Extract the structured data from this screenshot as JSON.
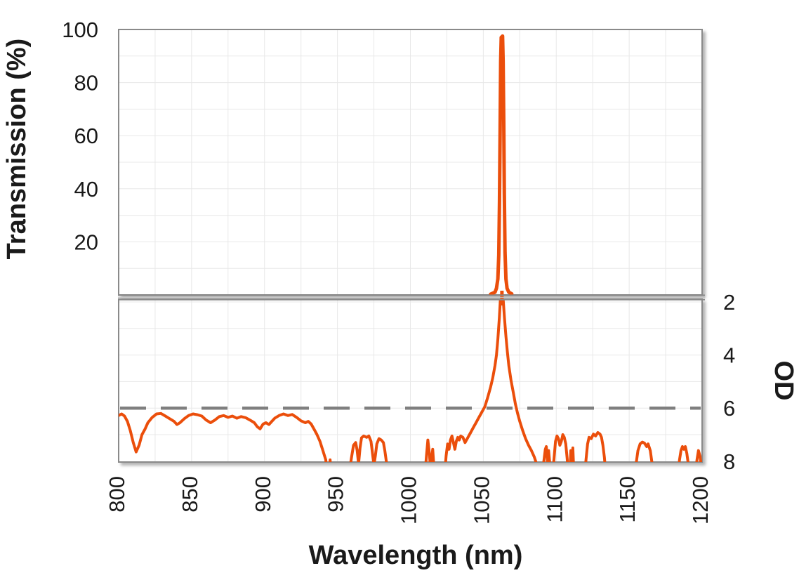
{
  "labels": {
    "xlabel": "Wavelength (nm)",
    "ylabel_left": "Transmission (%)",
    "ylabel_right": "OD"
  },
  "colors": {
    "curve_orange": "#EB4E0B",
    "grid": "#E8E8E8",
    "panel_border": "#8A8A8A",
    "divider_shadow": "#C4C4C4",
    "dashed_reference": "#7F7F7F",
    "text": "#1A1A1A",
    "background": "#FFFFFF"
  },
  "chart_data": {
    "type": "line",
    "title": "",
    "xlabel": "Wavelength (nm)",
    "ylabel_left": "Transmission (%)",
    "ylabel_right": "OD",
    "x_range_nm": [
      800,
      1200
    ],
    "x_ticks": [
      800,
      850,
      900,
      950,
      1000,
      1050,
      1100,
      1150,
      1200
    ],
    "x_minor_gridline_step_nm": 25,
    "x_tick_label_rotation_deg": -90,
    "grid": true,
    "legend": "none",
    "panels": {
      "top": {
        "axis_side": "left",
        "label": "Transmission (%)",
        "ylim": [
          0,
          100
        ],
        "yticks": [
          20,
          40,
          60,
          80,
          100
        ],
        "minor_gridline_step": 10
      },
      "bottom": {
        "axis_side": "right",
        "label": "OD",
        "ylim_top_to_bottom": [
          2,
          8
        ],
        "yticks": [
          2,
          4,
          6,
          8
        ],
        "minor_gridline_step": 1,
        "note": "inverted axis, OD 2 at top of panel, OD 8 at bottom edge"
      }
    },
    "reference_line": {
      "panel": "bottom",
      "od_value": 6,
      "style": "dashed",
      "color": "#7F7F7F"
    },
    "peak": {
      "center_nm": 1063,
      "peak_transmission_pct": 98
    },
    "series": [
      {
        "name": "transmission",
        "panel": "top",
        "color": "#EB4E0B",
        "points": [
          [
            1055,
            0.3
          ],
          [
            1058,
            1
          ],
          [
            1059,
            2.5
          ],
          [
            1060,
            6
          ],
          [
            1060.6,
            15
          ],
          [
            1061.1,
            35
          ],
          [
            1061.5,
            62
          ],
          [
            1061.9,
            88
          ],
          [
            1062.3,
            97
          ],
          [
            1063.2,
            97.5
          ],
          [
            1063.6,
            88
          ],
          [
            1064,
            65
          ],
          [
            1064.4,
            38
          ],
          [
            1064.9,
            16
          ],
          [
            1065.5,
            6
          ],
          [
            1066.3,
            2.5
          ],
          [
            1067.5,
            1
          ],
          [
            1069.5,
            0.4
          ]
        ]
      },
      {
        "name": "optical-density",
        "panel": "bottom",
        "color": "#EB4E0B",
        "points": [
          [
            800,
            6.28
          ],
          [
            802,
            6.22
          ],
          [
            804,
            6.3
          ],
          [
            806,
            6.5
          ],
          [
            808,
            6.85
          ],
          [
            810,
            7.3
          ],
          [
            812,
            7.65
          ],
          [
            814,
            7.4
          ],
          [
            816,
            7.0
          ],
          [
            818,
            6.8
          ],
          [
            820,
            6.55
          ],
          [
            823,
            6.35
          ],
          [
            826,
            6.22
          ],
          [
            829,
            6.2
          ],
          [
            832,
            6.3
          ],
          [
            835,
            6.4
          ],
          [
            838,
            6.5
          ],
          [
            840,
            6.62
          ],
          [
            842,
            6.55
          ],
          [
            845,
            6.4
          ],
          [
            848,
            6.28
          ],
          [
            851,
            6.22
          ],
          [
            854,
            6.25
          ],
          [
            857,
            6.3
          ],
          [
            860,
            6.45
          ],
          [
            863,
            6.55
          ],
          [
            866,
            6.45
          ],
          [
            869,
            6.32
          ],
          [
            872,
            6.28
          ],
          [
            875,
            6.35
          ],
          [
            878,
            6.3
          ],
          [
            881,
            6.38
          ],
          [
            884,
            6.32
          ],
          [
            887,
            6.36
          ],
          [
            890,
            6.45
          ],
          [
            893,
            6.55
          ],
          [
            895,
            6.7
          ],
          [
            897,
            6.78
          ],
          [
            899,
            6.6
          ],
          [
            901,
            6.55
          ],
          [
            903,
            6.62
          ],
          [
            905,
            6.5
          ],
          [
            907,
            6.38
          ],
          [
            910,
            6.28
          ],
          [
            913,
            6.22
          ],
          [
            916,
            6.28
          ],
          [
            919,
            6.24
          ],
          [
            922,
            6.35
          ],
          [
            925,
            6.48
          ],
          [
            928,
            6.55
          ],
          [
            930,
            6.5
          ],
          [
            932,
            6.6
          ],
          [
            934,
            6.8
          ],
          [
            936,
            7.0
          ],
          [
            938,
            7.25
          ],
          [
            940,
            7.6
          ],
          [
            942,
            7.95
          ],
          [
            943,
            8.5
          ],
          [
            944.5,
            8.5
          ],
          [
            945,
            7.95
          ],
          [
            945.5,
            8.5
          ],
          [
            958,
            8.5
          ],
          [
            959.5,
            7.9
          ],
          [
            961,
            7.4
          ],
          [
            962.5,
            7.3
          ],
          [
            963.5,
            7.6
          ],
          [
            964.5,
            8.1
          ],
          [
            965.5,
            7.5
          ],
          [
            966.5,
            7.12
          ],
          [
            968,
            7.05
          ],
          [
            970,
            7.1
          ],
          [
            971.5,
            7.05
          ],
          [
            973,
            7.25
          ],
          [
            974,
            7.7
          ],
          [
            975,
            8.15
          ],
          [
            976,
            7.8
          ],
          [
            977,
            7.35
          ],
          [
            978.5,
            7.15
          ],
          [
            980,
            7.2
          ],
          [
            981.5,
            7.3
          ],
          [
            982.5,
            7.6
          ],
          [
            983.5,
            8.0
          ],
          [
            984.5,
            8.5
          ],
          [
            1010,
            8.5
          ],
          [
            1011,
            7.8
          ],
          [
            1012,
            7.2
          ],
          [
            1013,
            7.7
          ],
          [
            1013.8,
            8.3
          ],
          [
            1014.6,
            7.9
          ],
          [
            1015.3,
            7.55
          ],
          [
            1016,
            8.1
          ],
          [
            1016.8,
            8.5
          ],
          [
            1023.5,
            8.5
          ],
          [
            1024.5,
            7.8
          ],
          [
            1025.5,
            7.35
          ],
          [
            1026.5,
            7.55
          ],
          [
            1027.5,
            7.2
          ],
          [
            1028.5,
            7.05
          ],
          [
            1029.5,
            7.3
          ],
          [
            1030.5,
            7.55
          ],
          [
            1031.5,
            7.25
          ],
          [
            1032.5,
            7.1
          ],
          [
            1033.5,
            7.2
          ],
          [
            1034.5,
            7.05
          ],
          [
            1036,
            7.1
          ],
          [
            1037.5,
            7.3
          ],
          [
            1039,
            7.15
          ],
          [
            1041,
            6.95
          ],
          [
            1043,
            6.75
          ],
          [
            1045,
            6.55
          ],
          [
            1047,
            6.35
          ],
          [
            1049,
            6.15
          ],
          [
            1051,
            5.95
          ],
          [
            1053,
            5.6
          ],
          [
            1055,
            5.2
          ],
          [
            1056.5,
            4.85
          ],
          [
            1058,
            4.4
          ],
          [
            1059,
            4.0
          ],
          [
            1060,
            3.4
          ],
          [
            1061,
            2.6
          ],
          [
            1061.8,
            1.8
          ],
          [
            1063.5,
            1.8
          ],
          [
            1064.5,
            2.6
          ],
          [
            1065.5,
            3.3
          ],
          [
            1066.5,
            3.9
          ],
          [
            1067.5,
            4.4
          ],
          [
            1069,
            4.95
          ],
          [
            1070.5,
            5.4
          ],
          [
            1072,
            5.85
          ],
          [
            1073.5,
            6.2
          ],
          [
            1075,
            6.5
          ],
          [
            1077,
            6.85
          ],
          [
            1079,
            7.15
          ],
          [
            1081,
            7.4
          ],
          [
            1083,
            7.6
          ],
          [
            1085,
            7.85
          ],
          [
            1086.5,
            8.1
          ],
          [
            1087.5,
            8.5
          ],
          [
            1090.5,
            8.5
          ],
          [
            1091.5,
            8.0
          ],
          [
            1092.5,
            7.55
          ],
          [
            1093.2,
            7.45
          ],
          [
            1094,
            8.0
          ],
          [
            1094.8,
            7.6
          ],
          [
            1095.5,
            8.05
          ],
          [
            1096.3,
            8.5
          ],
          [
            1097.5,
            8.5
          ],
          [
            1098.5,
            7.9
          ],
          [
            1099.5,
            7.25
          ],
          [
            1100.5,
            7.05
          ],
          [
            1101.5,
            7.15
          ],
          [
            1102.5,
            7.4
          ],
          [
            1103.5,
            7.25
          ],
          [
            1104.5,
            7.0
          ],
          [
            1105.5,
            7.1
          ],
          [
            1106.5,
            7.35
          ],
          [
            1107.5,
            7.9
          ],
          [
            1108.3,
            8.5
          ],
          [
            1109.3,
            8.5
          ],
          [
            1110,
            7.6
          ],
          [
            1110.7,
            8.5
          ],
          [
            1111.4,
            7.5
          ],
          [
            1112.1,
            8.5
          ],
          [
            1119.5,
            8.5
          ],
          [
            1120.5,
            7.9
          ],
          [
            1121.5,
            7.35
          ],
          [
            1122.5,
            7.1
          ],
          [
            1124,
            7.15
          ],
          [
            1125.5,
            6.98
          ],
          [
            1127,
            7.05
          ],
          [
            1128.5,
            6.92
          ],
          [
            1130,
            6.98
          ],
          [
            1131,
            7.1
          ],
          [
            1132,
            7.4
          ],
          [
            1133,
            7.85
          ],
          [
            1134,
            8.5
          ],
          [
            1154,
            8.5
          ],
          [
            1155,
            8.0
          ],
          [
            1156,
            7.6
          ],
          [
            1157.5,
            7.35
          ],
          [
            1159,
            7.28
          ],
          [
            1160.5,
            7.32
          ],
          [
            1162,
            7.45
          ],
          [
            1163,
            7.35
          ],
          [
            1164.5,
            7.6
          ],
          [
            1165.5,
            8.0
          ],
          [
            1166.5,
            8.5
          ],
          [
            1183.5,
            8.5
          ],
          [
            1184.5,
            7.95
          ],
          [
            1185.5,
            7.6
          ],
          [
            1186.5,
            7.45
          ],
          [
            1187.5,
            7.55
          ],
          [
            1188.5,
            7.45
          ],
          [
            1189.5,
            7.7
          ],
          [
            1190.5,
            8.1
          ],
          [
            1191.5,
            8.5
          ],
          [
            1195.5,
            8.5
          ],
          [
            1196.5,
            7.95
          ],
          [
            1197.5,
            7.6
          ],
          [
            1198.5,
            7.8
          ],
          [
            1199.5,
            8.2
          ],
          [
            1200,
            8.4
          ]
        ]
      }
    ]
  }
}
